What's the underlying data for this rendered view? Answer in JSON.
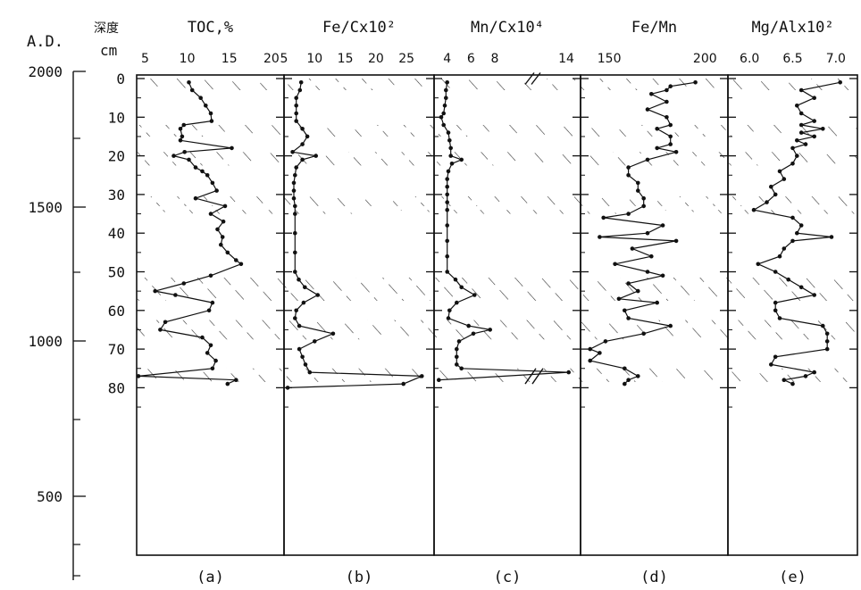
{
  "chart_data": {
    "type": "line",
    "age_axis": {
      "label": "A.D.",
      "ticks": [
        {
          "value": 2000,
          "label": "2000"
        },
        {
          "value": 1500,
          "label": "1500"
        },
        {
          "value": 1000,
          "label": "1000"
        },
        {
          "value": 500,
          "label": "500"
        }
      ]
    },
    "depth_axis": {
      "label_top": "深度",
      "label_bottom": "cm",
      "ylim": [
        0,
        80
      ],
      "ticks": [
        {
          "value": 0,
          "label": "0"
        },
        {
          "value": 10,
          "label": "10"
        },
        {
          "value": 20,
          "label": "20"
        },
        {
          "value": 30,
          "label": "30"
        },
        {
          "value": 40,
          "label": "40"
        },
        {
          "value": 50,
          "label": "50"
        },
        {
          "value": 60,
          "label": "60"
        },
        {
          "value": 70,
          "label": "70"
        },
        {
          "value": 80,
          "label": "80"
        }
      ]
    },
    "hatched_intervals": [
      [
        0,
        3
      ],
      [
        12,
        15
      ],
      [
        19,
        22.5
      ],
      [
        30.5,
        33
      ],
      [
        34,
        35
      ],
      [
        51.5,
        57.5
      ],
      [
        62.5,
        67.5
      ],
      [
        75,
        78.5
      ]
    ],
    "panels": [
      {
        "id": "a",
        "caption": "(a)",
        "title": "TOC,%",
        "xlim": [
          4.0,
          21.5
        ],
        "xticks": [
          {
            "value": 5,
            "label": "5"
          },
          {
            "value": 10,
            "label": "10"
          },
          {
            "value": 15,
            "label": "15"
          },
          {
            "value": 20,
            "label": "20"
          }
        ],
        "depth": [
          1,
          3,
          5,
          7,
          9,
          11,
          12,
          13,
          15,
          16,
          18,
          19,
          20,
          21,
          23,
          24,
          25,
          27,
          29,
          31,
          33,
          35,
          37,
          39,
          41,
          43,
          45,
          47,
          48,
          51,
          53,
          55,
          56,
          58,
          60,
          63,
          65,
          67,
          69,
          71,
          73,
          75,
          77,
          78,
          79
        ],
        "values": [
          10.2,
          10.6,
          11.6,
          12.2,
          12.8,
          12.9,
          9.6,
          9.2,
          9.4,
          9.2,
          15.3,
          9.7,
          8.4,
          10.2,
          11.0,
          11.8,
          12.4,
          13.0,
          13.5,
          11.0,
          14.5,
          12.8,
          14.3,
          13.6,
          14.2,
          14.0,
          14.8,
          15.8,
          16.4,
          12.8,
          9.6,
          6.2,
          8.6,
          13.0,
          12.6,
          7.4,
          6.8,
          11.8,
          12.8,
          12.4,
          13.4,
          13.0,
          3.8,
          15.8,
          14.8
        ]
      },
      {
        "id": "b",
        "caption": "(b)",
        "title": "Fe/Cx10²",
        "xlim": [
          5,
          29.5
        ],
        "xticks": [
          {
            "value": 5,
            "label": "5"
          },
          {
            "value": 10,
            "label": "10"
          },
          {
            "value": 15,
            "label": "15"
          },
          {
            "value": 20,
            "label": "20"
          },
          {
            "value": 25,
            "label": "25"
          }
        ],
        "depth": [
          1,
          3,
          5,
          7,
          9,
          11,
          13,
          15,
          17,
          19,
          20,
          21,
          23,
          25,
          27,
          29,
          31,
          33,
          35,
          40,
          45,
          50,
          52,
          54,
          56,
          58,
          60,
          62,
          64,
          66,
          68,
          70,
          72,
          74,
          76,
          77,
          79,
          80
        ],
        "values": [
          7.8,
          7.6,
          7.0,
          7.0,
          7.0,
          7.0,
          8.0,
          8.8,
          8.0,
          6.4,
          10.2,
          8.0,
          7.0,
          6.8,
          6.6,
          6.6,
          6.6,
          6.8,
          6.8,
          6.8,
          6.8,
          6.8,
          7.4,
          8.4,
          10.5,
          8.2,
          7.0,
          6.8,
          7.5,
          13.0,
          10.0,
          7.5,
          8.0,
          8.5,
          9.2,
          27.5,
          24.5,
          5.6
        ]
      },
      {
        "id": "c",
        "caption": "(c)",
        "title": "Mn/Cx10⁴",
        "xlim": [
          2.9,
          15.2
        ],
        "xticks": [
          {
            "value": 4,
            "label": "4"
          },
          {
            "value": 6,
            "label": "6"
          },
          {
            "value": 8,
            "label": "8"
          },
          {
            "value": 14,
            "label": "14"
          }
        ],
        "depth": [
          1,
          3,
          5,
          7,
          9,
          10,
          12,
          14,
          16,
          18,
          20,
          21,
          22,
          24,
          26,
          28,
          30,
          32,
          34,
          38,
          42,
          46,
          50,
          52,
          54,
          56,
          58,
          60,
          62,
          64,
          65,
          66,
          68,
          70,
          72,
          74,
          75,
          76,
          78
        ],
        "values": [
          4.0,
          3.9,
          3.9,
          3.8,
          3.7,
          3.5,
          3.7,
          4.1,
          4.2,
          4.3,
          4.3,
          5.2,
          4.4,
          4.1,
          4.0,
          4.0,
          4.0,
          4.0,
          4.0,
          4.0,
          4.0,
          4.0,
          4.0,
          4.7,
          5.2,
          6.3,
          4.8,
          4.2,
          4.1,
          5.8,
          7.6,
          6.2,
          5.0,
          4.8,
          4.8,
          4.8,
          5.2,
          14.2,
          3.3
        ]
      },
      {
        "id": "d",
        "caption": "(d)",
        "title": "Fe/Mn",
        "xlim": [
          135,
          212
        ],
        "xticks": [
          {
            "value": 150,
            "label": "150"
          },
          {
            "value": 200,
            "label": "200"
          }
        ],
        "depth": [
          1,
          2,
          3,
          4,
          6,
          8,
          10,
          12,
          13,
          15,
          17,
          18,
          19,
          21,
          23,
          25,
          27,
          29,
          31,
          33,
          35,
          36,
          38,
          40,
          41,
          42,
          44,
          46,
          48,
          50,
          51,
          53,
          55,
          57,
          58,
          60,
          62,
          64,
          66,
          68,
          70,
          71,
          73,
          75,
          77,
          78,
          79
        ],
        "values": [
          195,
          182,
          180,
          172,
          180,
          170,
          180,
          182,
          175,
          182,
          182,
          175,
          185,
          170,
          160,
          160,
          165,
          165,
          168,
          168,
          160,
          147,
          178,
          170,
          145,
          185,
          162,
          172,
          153,
          170,
          178,
          160,
          165,
          155,
          175,
          158,
          160,
          182,
          168,
          148,
          140,
          145,
          140,
          158,
          165,
          160,
          158
        ]
      },
      {
        "id": "e",
        "caption": "(e)",
        "title": "Mg/Alx10²",
        "xlim": [
          5.75,
          7.25
        ],
        "xticks": [
          {
            "value": 6.0,
            "label": "6.0"
          },
          {
            "value": 6.5,
            "label": "6.5"
          },
          {
            "value": 7.0,
            "label": "7.0"
          }
        ],
        "depth": [
          1,
          3,
          5,
          7,
          9,
          11,
          12,
          13,
          14,
          15,
          16,
          17,
          18,
          20,
          22,
          24,
          26,
          28,
          30,
          32,
          34,
          36,
          38,
          40,
          41,
          42,
          44,
          46,
          48,
          50,
          52,
          54,
          56,
          58,
          60,
          62,
          64,
          66,
          68,
          70,
          72,
          74,
          76,
          77,
          78,
          79
        ],
        "values": [
          7.05,
          6.6,
          6.75,
          6.55,
          6.6,
          6.75,
          6.6,
          6.85,
          6.6,
          6.75,
          6.55,
          6.65,
          6.5,
          6.55,
          6.5,
          6.35,
          6.4,
          6.25,
          6.3,
          6.2,
          6.05,
          6.5,
          6.6,
          6.55,
          6.95,
          6.5,
          6.4,
          6.35,
          6.1,
          6.3,
          6.45,
          6.6,
          6.75,
          6.3,
          6.3,
          6.35,
          6.85,
          6.9,
          6.9,
          6.9,
          6.3,
          6.25,
          6.75,
          6.65,
          6.4,
          6.5
        ]
      }
    ]
  }
}
